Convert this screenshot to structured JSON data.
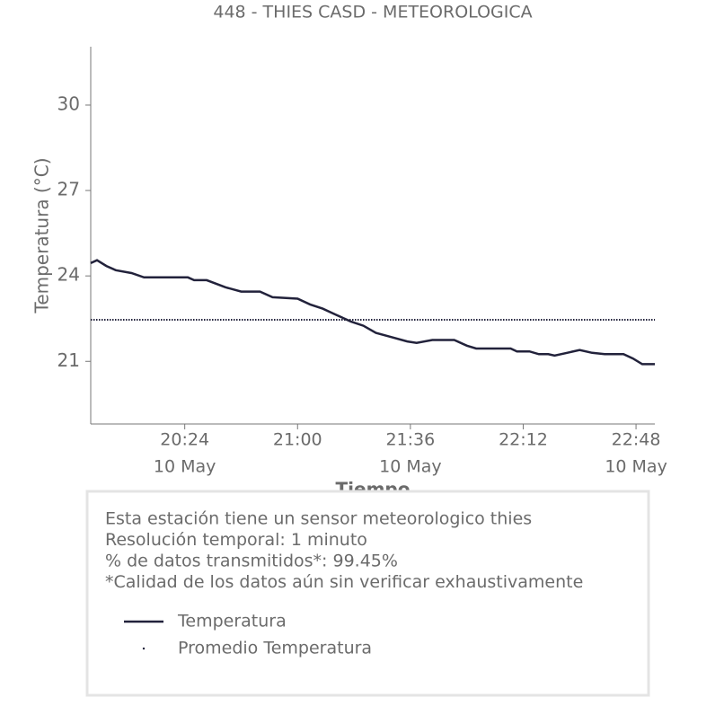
{
  "chart_data": {
    "type": "line",
    "title": "448 - THIES CASD - METEOROLOGICA",
    "xlabel": "Tiempo",
    "ylabel": "Temperatura (°C)",
    "xlim": [
      "19:54",
      "22:54"
    ],
    "xticks": [
      "20:24",
      "21:00",
      "21:36",
      "22:12",
      "22:48"
    ],
    "xtick_sublabels": [
      "10 May",
      null,
      "10 May",
      null,
      "10 May"
    ],
    "ylim": [
      18.8,
      32.05
    ],
    "yticks": [
      21,
      24,
      27,
      30
    ],
    "series": [
      {
        "name": "Temperatura",
        "color": "#22223b",
        "style": "solid",
        "x": [
          "19:54",
          "19:56",
          "19:59",
          "20:02",
          "20:07",
          "20:11",
          "20:25",
          "20:27",
          "20:31",
          "20:37",
          "20:42",
          "20:48",
          "20:52",
          "21:00",
          "21:04",
          "21:08",
          "21:12",
          "21:17",
          "21:21",
          "21:25",
          "21:30",
          "21:35",
          "21:38",
          "21:43",
          "21:50",
          "21:54",
          "21:57",
          "22:08",
          "22:10",
          "22:14",
          "22:17",
          "22:20",
          "22:22",
          "22:26",
          "22:30",
          "22:34",
          "22:38",
          "22:44",
          "22:47",
          "22:50",
          "22:54"
        ],
        "values": [
          24.45,
          24.55,
          24.35,
          24.2,
          24.1,
          23.95,
          23.95,
          23.85,
          23.85,
          23.6,
          23.45,
          23.45,
          23.25,
          23.2,
          23.0,
          22.85,
          22.65,
          22.4,
          22.25,
          22.0,
          21.85,
          21.7,
          21.65,
          21.75,
          21.75,
          21.55,
          21.45,
          21.45,
          21.35,
          21.35,
          21.25,
          21.25,
          21.2,
          21.3,
          21.4,
          21.3,
          21.25,
          21.25,
          21.1,
          20.9,
          20.9
        ]
      },
      {
        "name": "Promedio Temperatura",
        "color": "#22223b",
        "style": "dotted",
        "x": [
          "19:54",
          "22:54"
        ],
        "values": [
          22.46,
          22.46
        ]
      }
    ],
    "info_lines": [
      "Esta estación tiene un sensor meteorologico thies",
      "Resolución temporal: 1 minuto",
      "% de datos transmitidos*: 99.45%",
      "*Calidad de los datos aún sin verificar exhaustivamente"
    ]
  }
}
